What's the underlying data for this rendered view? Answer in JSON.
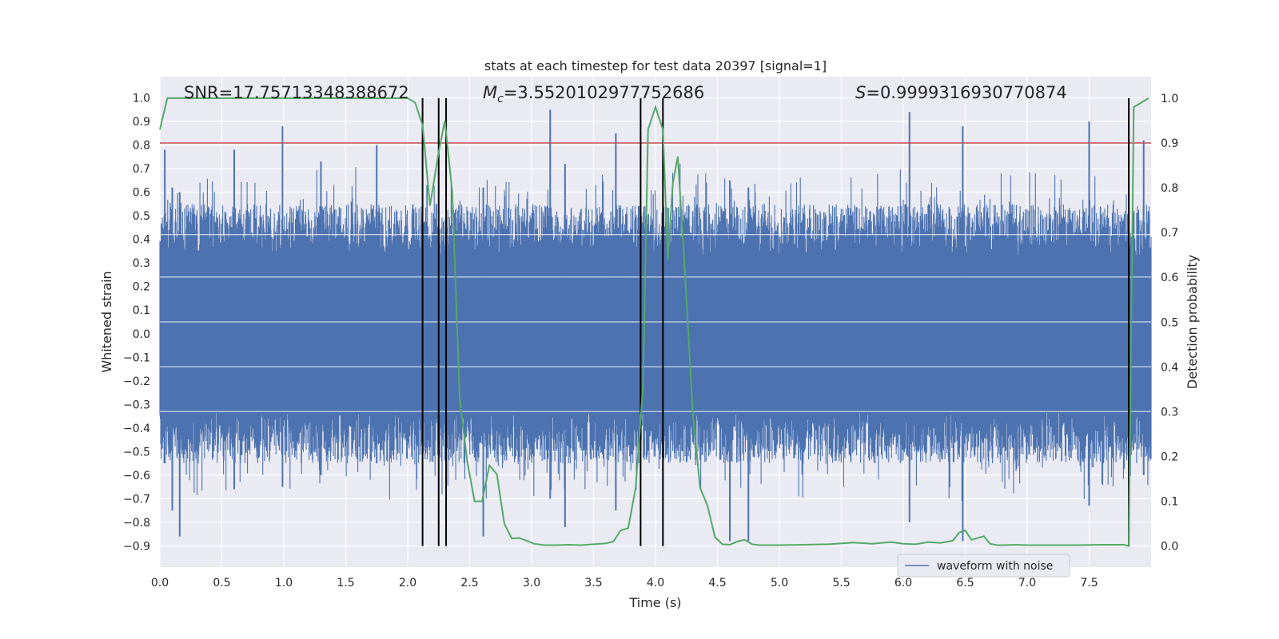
{
  "chart_data": {
    "type": "line",
    "title": "stats at each timestep for test data 20397 [signal=1]",
    "xlabel": "Time (s)",
    "ylabel": "Whitened strain",
    "y2label": "Detection probability",
    "xlim": [
      0.0,
      8.0
    ],
    "ylim": [
      -0.99,
      1.09
    ],
    "y2lim": [
      -0.047,
      1.048
    ],
    "xticks": [
      "0.0",
      "0.5",
      "1.0",
      "1.5",
      "2.0",
      "2.5",
      "3.0",
      "3.5",
      "4.0",
      "4.5",
      "5.0",
      "5.5",
      "6.0",
      "6.5",
      "7.0",
      "7.5"
    ],
    "yticks": [
      "1.0",
      "0.9",
      "0.8",
      "0.7",
      "0.6",
      "0.5",
      "0.4",
      "0.3",
      "0.2",
      "0.1",
      "0.0",
      "−0.1",
      "−0.2",
      "−0.3",
      "−0.4",
      "−0.5",
      "−0.6",
      "−0.7",
      "−0.8",
      "−0.9"
    ],
    "y2ticks": [
      "1.0",
      "0.9",
      "0.8",
      "0.7",
      "0.6",
      "0.5",
      "0.4",
      "0.3",
      "0.2",
      "0.1",
      "0.0"
    ],
    "annotations": {
      "snr": "SNR=17.75713348388672",
      "mc_symbol": "M",
      "mc_sub": "c",
      "mc_value": "=3.5520102977752686",
      "s_symbol": "S",
      "s_value": "=0.9999316930770874"
    },
    "threshold_y2": 0.9,
    "vertical_lines_x": [
      2.12,
      2.25,
      2.31,
      3.88,
      4.06,
      7.82
    ],
    "series": [
      {
        "name": "waveform with noise",
        "color": "#4c72b0",
        "axis": "left",
        "description": "dense noisy strain envelope between about -0.86 and 0.88",
        "spikes": [
          {
            "x": 0.04,
            "top": 0.78,
            "bottom": -0.55
          },
          {
            "x": 0.1,
            "top": 0.62,
            "bottom": -0.75
          },
          {
            "x": 0.16,
            "top": 0.6,
            "bottom": -0.86
          },
          {
            "x": 0.6,
            "top": 0.78,
            "bottom": -0.66
          },
          {
            "x": 0.99,
            "top": 0.88,
            "bottom": -0.65
          },
          {
            "x": 1.3,
            "top": 0.73,
            "bottom": -0.6
          },
          {
            "x": 1.75,
            "top": 0.8,
            "bottom": -0.55
          },
          {
            "x": 2.61,
            "top": 0.62,
            "bottom": -0.86
          },
          {
            "x": 3.15,
            "top": 0.95,
            "bottom": -0.7
          },
          {
            "x": 3.27,
            "top": 0.72,
            "bottom": -0.82
          },
          {
            "x": 3.68,
            "top": 0.85,
            "bottom": -0.75
          },
          {
            "x": 4.6,
            "top": 0.65,
            "bottom": -0.88
          },
          {
            "x": 4.75,
            "top": 0.62,
            "bottom": -0.88
          },
          {
            "x": 6.05,
            "top": 0.94,
            "bottom": -0.8
          },
          {
            "x": 6.48,
            "top": 0.88,
            "bottom": -0.88
          },
          {
            "x": 7.5,
            "top": 0.9,
            "bottom": -0.73
          },
          {
            "x": 7.94,
            "top": 0.82,
            "bottom": -0.6
          }
        ]
      },
      {
        "name": "detection probability",
        "color": "#55a868",
        "axis": "right",
        "x": [
          0.0,
          0.06,
          0.5,
          1.0,
          1.5,
          2.0,
          2.06,
          2.12,
          2.18,
          2.25,
          2.3,
          2.36,
          2.42,
          2.48,
          2.54,
          2.6,
          2.66,
          2.72,
          2.78,
          2.84,
          2.9,
          2.96,
          3.02,
          3.1,
          3.2,
          3.3,
          3.4,
          3.5,
          3.6,
          3.66,
          3.72,
          3.78,
          3.84,
          3.9,
          3.94,
          4.0,
          4.06,
          4.1,
          4.14,
          4.18,
          4.24,
          4.3,
          4.36,
          4.42,
          4.48,
          4.54,
          4.6,
          4.66,
          4.72,
          4.78,
          4.84,
          4.9,
          5.0,
          5.2,
          5.4,
          5.6,
          5.75,
          5.9,
          6.0,
          6.1,
          6.2,
          6.3,
          6.4,
          6.45,
          6.5,
          6.55,
          6.6,
          6.65,
          6.7,
          6.76,
          6.82,
          6.9,
          7.0,
          7.2,
          7.4,
          7.6,
          7.78,
          7.82,
          7.86,
          7.92,
          7.98
        ],
        "values": [
          0.93,
          1.0,
          1.0,
          1.0,
          1.0,
          1.0,
          0.99,
          0.94,
          0.76,
          0.88,
          0.95,
          0.79,
          0.33,
          0.19,
          0.1,
          0.1,
          0.18,
          0.16,
          0.05,
          0.017,
          0.018,
          0.012,
          0.005,
          0.002,
          0.002,
          0.003,
          0.002,
          0.004,
          0.006,
          0.01,
          0.035,
          0.04,
          0.13,
          0.36,
          0.93,
          0.98,
          0.93,
          0.64,
          0.81,
          0.87,
          0.6,
          0.3,
          0.13,
          0.09,
          0.02,
          0.004,
          0.003,
          0.01,
          0.014,
          0.004,
          0.002,
          0.002,
          0.002,
          0.003,
          0.004,
          0.008,
          0.005,
          0.009,
          0.005,
          0.004,
          0.009,
          0.007,
          0.012,
          0.03,
          0.035,
          0.014,
          0.018,
          0.022,
          0.005,
          0.002,
          0.002,
          0.003,
          0.002,
          0.002,
          0.002,
          0.003,
          0.003,
          0.0,
          0.98,
          0.99,
          1.0
        ]
      }
    ],
    "legend": {
      "label": "waveform with noise",
      "placement": "lower-right"
    }
  },
  "colors": {
    "axes_bg": "#eaeaf2",
    "grid": "#ffffff",
    "strain": "#4c72b0",
    "probability": "#55a868",
    "threshold": "#c44e52",
    "vlines": "#000000"
  }
}
